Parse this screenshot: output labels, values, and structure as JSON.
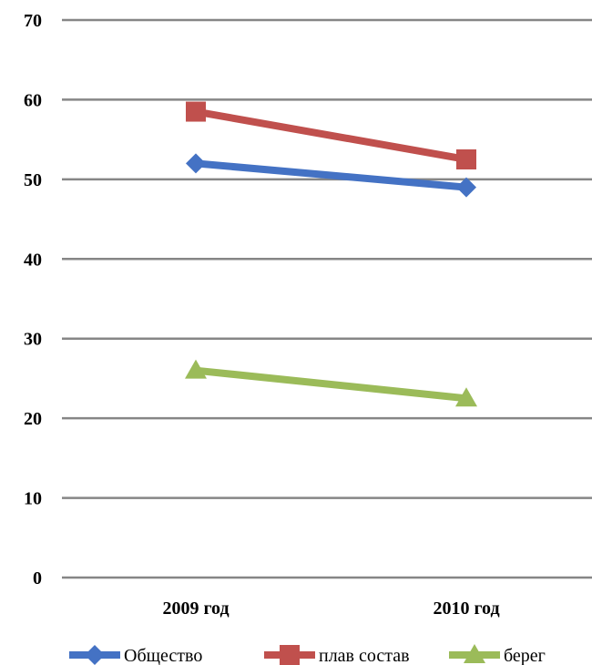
{
  "chart_data": {
    "type": "line",
    "categories": [
      "2009 год",
      "2010 год"
    ],
    "ylim": [
      0,
      70
    ],
    "yticks": [
      0,
      10,
      20,
      30,
      40,
      50,
      60,
      70
    ],
    "grid": true,
    "legend_position": "bottom",
    "series": [
      {
        "name": "Общество",
        "values": [
          52,
          49
        ],
        "color": "#4472C4",
        "marker": "diamond"
      },
      {
        "name": "плав состав",
        "values": [
          58.5,
          52.5
        ],
        "color": "#C0504D",
        "marker": "square"
      },
      {
        "name": "берег",
        "values": [
          26,
          22.5
        ],
        "color": "#9BBB59",
        "marker": "triangle"
      }
    ]
  }
}
